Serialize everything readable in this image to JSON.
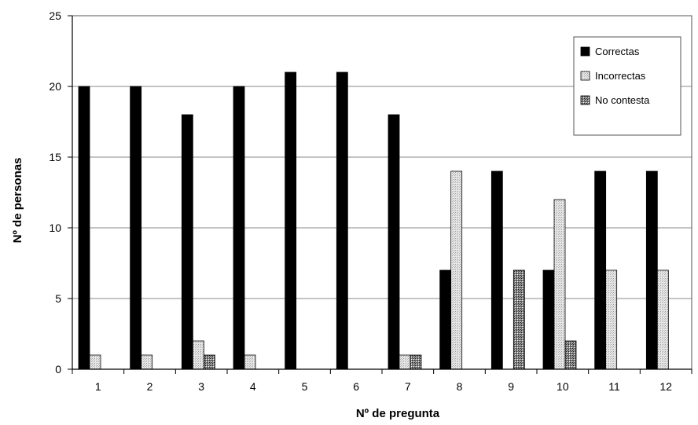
{
  "chart_data": {
    "type": "bar",
    "title": "",
    "xlabel": "Nº de pregunta",
    "ylabel": "Nº de personas",
    "ylim": [
      0,
      25
    ],
    "yticks": [
      0,
      5,
      10,
      15,
      20,
      25
    ],
    "grid": true,
    "legend_position": "top-right",
    "categories": [
      "1",
      "2",
      "3",
      "4",
      "5",
      "6",
      "7",
      "8",
      "9",
      "10",
      "11",
      "12"
    ],
    "series": [
      {
        "name": "Correctas",
        "color": "#000000",
        "pattern": "solid",
        "values": [
          20,
          20,
          18,
          20,
          21,
          21,
          18,
          7,
          14,
          7,
          14,
          14
        ]
      },
      {
        "name": "Incorrectas",
        "color": "#d9d9d9",
        "pattern": "light-dots",
        "values": [
          1,
          1,
          2,
          1,
          0,
          0,
          1,
          14,
          0,
          12,
          7,
          7
        ]
      },
      {
        "name": "No contesta",
        "color": "#7a7a7a",
        "pattern": "crosshatch",
        "values": [
          0,
          0,
          1,
          0,
          0,
          0,
          1,
          0,
          7,
          2,
          0,
          0
        ]
      }
    ]
  }
}
